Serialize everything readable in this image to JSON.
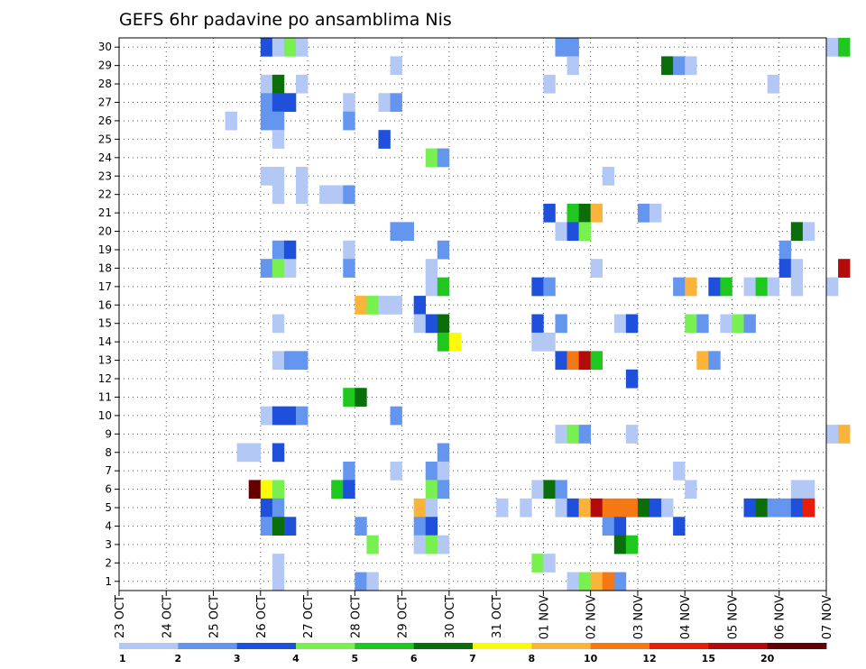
{
  "chart_data": {
    "type": "heatmap",
    "title": "GEFS 6hr padavine po ansamblima Nis",
    "y_ticks": [
      "1",
      "2",
      "3",
      "4",
      "5",
      "6",
      "7",
      "8",
      "9",
      "10",
      "11",
      "12",
      "13",
      "14",
      "15",
      "16",
      "17",
      "18",
      "19",
      "20",
      "21",
      "22",
      "23",
      "24",
      "25",
      "26",
      "27",
      "28",
      "29",
      "30"
    ],
    "ylim": [
      0,
      30
    ],
    "x_ticks": [
      "23 OCT",
      "24 OCT",
      "25 OCT",
      "26 OCT",
      "27 OCT",
      "28 OCT",
      "29 OCT",
      "30 OCT",
      "31 OCT",
      "01 NOV",
      "02 NOV",
      "03 NOV",
      "04 NOV",
      "05 NOV",
      "06 NOV",
      "07 NOV"
    ],
    "time_step": "6hr",
    "grid": "dotted",
    "legend": {
      "position": "bottom",
      "labels": [
        "1",
        "2",
        "3",
        "4",
        "5",
        "6",
        "7",
        "8",
        "10",
        "12",
        "15",
        "20"
      ],
      "colors": [
        "#b4c8f5",
        "#6496f0",
        "#1e50dc",
        "#78f050",
        "#1ec81e",
        "#0a6e0a",
        "#fafa0a",
        "#fab43c",
        "#f57814",
        "#e61e0a",
        "#b40a0a",
        "#640000"
      ]
    },
    "colors": {
      "c1": "#b4c8f5",
      "c2": "#6496f0",
      "c3": "#1e50dc",
      "c4": "#78f050",
      "c5": "#1ec81e",
      "c6": "#0a6e0a",
      "c7": "#fafa0a",
      "c8": "#fab43c",
      "c10": "#f57814",
      "c12": "#e61e0a",
      "c15": "#b40a0a",
      "c20": "#640000"
    },
    "cells": [
      [
        30,
        12,
        3
      ],
      [
        30,
        13,
        1
      ],
      [
        30,
        14,
        4
      ],
      [
        30,
        15,
        1
      ],
      [
        30,
        37,
        2
      ],
      [
        30,
        38,
        2
      ],
      [
        30,
        60,
        1
      ],
      [
        30,
        61,
        5
      ],
      [
        29,
        23,
        1
      ],
      [
        29,
        38,
        1
      ],
      [
        29,
        46,
        6
      ],
      [
        29,
        47,
        2
      ],
      [
        29,
        48,
        1
      ],
      [
        28,
        12,
        1
      ],
      [
        28,
        13,
        6
      ],
      [
        28,
        15,
        1
      ],
      [
        28,
        36,
        1
      ],
      [
        28,
        55,
        1
      ],
      [
        27,
        12,
        2
      ],
      [
        27,
        13,
        3
      ],
      [
        27,
        14,
        3
      ],
      [
        27,
        19,
        1
      ],
      [
        27,
        22,
        1
      ],
      [
        27,
        23,
        2
      ],
      [
        26,
        9,
        1
      ],
      [
        26,
        12,
        2
      ],
      [
        26,
        13,
        2
      ],
      [
        26,
        19,
        2
      ],
      [
        25,
        13,
        1
      ],
      [
        25,
        22,
        3
      ],
      [
        24,
        26,
        4
      ],
      [
        24,
        27,
        2
      ],
      [
        23,
        12,
        1
      ],
      [
        23,
        13,
        1
      ],
      [
        23,
        15,
        1
      ],
      [
        23,
        41,
        1
      ],
      [
        22,
        13,
        1
      ],
      [
        22,
        15,
        1
      ],
      [
        22,
        17,
        1
      ],
      [
        22,
        18,
        1
      ],
      [
        22,
        19,
        2
      ],
      [
        21,
        36,
        3
      ],
      [
        21,
        38,
        5
      ],
      [
        21,
        39,
        6
      ],
      [
        21,
        40,
        8
      ],
      [
        21,
        44,
        2
      ],
      [
        21,
        45,
        1
      ],
      [
        20,
        23,
        2
      ],
      [
        20,
        24,
        2
      ],
      [
        20,
        37,
        1
      ],
      [
        20,
        38,
        3
      ],
      [
        20,
        39,
        4
      ],
      [
        20,
        57,
        6
      ],
      [
        20,
        58,
        1
      ],
      [
        19,
        13,
        2
      ],
      [
        19,
        14,
        3
      ],
      [
        19,
        19,
        1
      ],
      [
        19,
        27,
        2
      ],
      [
        19,
        56,
        2
      ],
      [
        18,
        12,
        2
      ],
      [
        18,
        13,
        4
      ],
      [
        18,
        14,
        1
      ],
      [
        18,
        19,
        2
      ],
      [
        18,
        26,
        1
      ],
      [
        18,
        40,
        1
      ],
      [
        18,
        56,
        3
      ],
      [
        18,
        57,
        1
      ],
      [
        18,
        61,
        15
      ],
      [
        17,
        26,
        1
      ],
      [
        17,
        27,
        5
      ],
      [
        17,
        35,
        3
      ],
      [
        17,
        36,
        2
      ],
      [
        17,
        47,
        2
      ],
      [
        17,
        48,
        8
      ],
      [
        17,
        50,
        3
      ],
      [
        17,
        51,
        5
      ],
      [
        17,
        53,
        1
      ],
      [
        17,
        54,
        5
      ],
      [
        17,
        55,
        1
      ],
      [
        17,
        57,
        1
      ],
      [
        17,
        60,
        1
      ],
      [
        16,
        20,
        8
      ],
      [
        16,
        21,
        4
      ],
      [
        16,
        22,
        1
      ],
      [
        16,
        23,
        1
      ],
      [
        16,
        25,
        3
      ],
      [
        15,
        13,
        1
      ],
      [
        15,
        25,
        1
      ],
      [
        15,
        26,
        3
      ],
      [
        15,
        27,
        6
      ],
      [
        15,
        35,
        3
      ],
      [
        15,
        37,
        2
      ],
      [
        15,
        42,
        1
      ],
      [
        15,
        43,
        3
      ],
      [
        15,
        48,
        4
      ],
      [
        15,
        49,
        2
      ],
      [
        15,
        51,
        1
      ],
      [
        15,
        52,
        4
      ],
      [
        15,
        53,
        2
      ],
      [
        14,
        27,
        5
      ],
      [
        14,
        28,
        7
      ],
      [
        14,
        35,
        1
      ],
      [
        14,
        36,
        1
      ],
      [
        13,
        13,
        1
      ],
      [
        13,
        14,
        2
      ],
      [
        13,
        15,
        2
      ],
      [
        13,
        37,
        3
      ],
      [
        13,
        38,
        10
      ],
      [
        13,
        39,
        15
      ],
      [
        13,
        40,
        5
      ],
      [
        13,
        49,
        8
      ],
      [
        13,
        50,
        2
      ],
      [
        12,
        43,
        3
      ],
      [
        11,
        19,
        5
      ],
      [
        11,
        20,
        6
      ],
      [
        10,
        12,
        1
      ],
      [
        10,
        13,
        3
      ],
      [
        10,
        14,
        3
      ],
      [
        10,
        15,
        2
      ],
      [
        10,
        23,
        2
      ],
      [
        9,
        37,
        1
      ],
      [
        9,
        38,
        4
      ],
      [
        9,
        39,
        2
      ],
      [
        9,
        43,
        1
      ],
      [
        9,
        60,
        1
      ],
      [
        9,
        61,
        8
      ],
      [
        8,
        10,
        1
      ],
      [
        8,
        11,
        1
      ],
      [
        8,
        13,
        3
      ],
      [
        8,
        27,
        2
      ],
      [
        7,
        19,
        2
      ],
      [
        7,
        23,
        1
      ],
      [
        7,
        26,
        2
      ],
      [
        7,
        27,
        1
      ],
      [
        7,
        47,
        1
      ],
      [
        6,
        11,
        20
      ],
      [
        6,
        12,
        7
      ],
      [
        6,
        13,
        4
      ],
      [
        6,
        18,
        5
      ],
      [
        6,
        19,
        3
      ],
      [
        6,
        26,
        4
      ],
      [
        6,
        27,
        2
      ],
      [
        6,
        35,
        1
      ],
      [
        6,
        36,
        6
      ],
      [
        6,
        37,
        2
      ],
      [
        6,
        48,
        1
      ],
      [
        6,
        57,
        1
      ],
      [
        6,
        58,
        1
      ],
      [
        5,
        12,
        3
      ],
      [
        5,
        13,
        2
      ],
      [
        5,
        25,
        8
      ],
      [
        5,
        26,
        1
      ],
      [
        5,
        32,
        1
      ],
      [
        5,
        34,
        1
      ],
      [
        5,
        37,
        1
      ],
      [
        5,
        38,
        3
      ],
      [
        5,
        39,
        8
      ],
      [
        5,
        40,
        15
      ],
      [
        5,
        41,
        10
      ],
      [
        5,
        42,
        10
      ],
      [
        5,
        43,
        10
      ],
      [
        5,
        44,
        6
      ],
      [
        5,
        45,
        3
      ],
      [
        5,
        46,
        1
      ],
      [
        5,
        53,
        3
      ],
      [
        5,
        54,
        6
      ],
      [
        5,
        55,
        2
      ],
      [
        5,
        56,
        2
      ],
      [
        5,
        57,
        3
      ],
      [
        5,
        58,
        12
      ],
      [
        4,
        12,
        2
      ],
      [
        4,
        13,
        6
      ],
      [
        4,
        14,
        3
      ],
      [
        4,
        20,
        2
      ],
      [
        4,
        25,
        2
      ],
      [
        4,
        26,
        3
      ],
      [
        4,
        41,
        2
      ],
      [
        4,
        42,
        3
      ],
      [
        4,
        47,
        3
      ],
      [
        3,
        21,
        4
      ],
      [
        3,
        25,
        1
      ],
      [
        3,
        26,
        4
      ],
      [
        3,
        27,
        1
      ],
      [
        3,
        42,
        6
      ],
      [
        3,
        43,
        5
      ],
      [
        2,
        13,
        1
      ],
      [
        2,
        35,
        4
      ],
      [
        2,
        36,
        1
      ],
      [
        1,
        13,
        1
      ],
      [
        1,
        20,
        2
      ],
      [
        1,
        21,
        1
      ],
      [
        1,
        38,
        1
      ],
      [
        1,
        39,
        4
      ],
      [
        1,
        40,
        8
      ],
      [
        1,
        41,
        10
      ],
      [
        1,
        42,
        2
      ]
    ]
  }
}
